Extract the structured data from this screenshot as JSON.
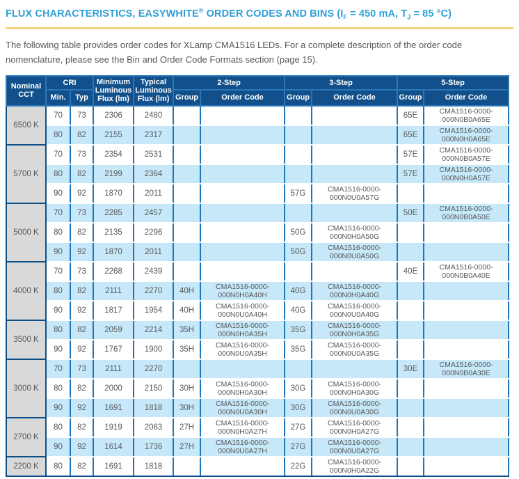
{
  "header": {
    "title_part1": "FLUX CHARACTERISTICS, EASYWHITE",
    "title_reg": "®",
    "title_part2": " ORDER CODES AND BINS (I",
    "title_sub_f": "F",
    "title_part3": " = 450 mA, T",
    "title_sub_j": "J",
    "title_part4": " = 85 °C)"
  },
  "intro_text": "The following table provides order codes for XLamp CMA1516 LEDs. For a complete description of the order code nomenclature, please see the Bin and Order Code Formats section (page 15).",
  "colors": {
    "title_blue": "#2e9fd6",
    "rule_gold": "#f3d37c",
    "header_blue": "#11508b",
    "cell_border_blue": "#1d74ba",
    "dark_border_blue": "#0d4f88",
    "row_alt_blue": "#c6e8f8",
    "cct_gray": "#d9d9d9",
    "text_gray": "#58595b"
  },
  "table": {
    "headers": {
      "nominal_cct": "Nominal CCT",
      "cri": "CRI",
      "cri_min": "Min.",
      "cri_typ": "Typ",
      "min_flux": "Minimum Luminous Flux (lm)",
      "typ_flux": "Typical Luminous Flux (lm)",
      "step2": "2-Step",
      "step3": "3-Step",
      "step5": "5-Step",
      "group": "Group",
      "order_code": "Order Code"
    },
    "groups": [
      {
        "cct": "6500 K",
        "rows": [
          {
            "cri_min": 70,
            "cri_typ": 73,
            "min_flux": 2306,
            "typ_flux": 2480,
            "step2_group": "",
            "step2_code": "",
            "step3_group": "",
            "step3_code": "",
            "step5_group": "65E",
            "step5_code": "CMA1516-0000-000N0B0A65E"
          },
          {
            "cri_min": 80,
            "cri_typ": 82,
            "min_flux": 2155,
            "typ_flux": 2317,
            "step2_group": "",
            "step2_code": "",
            "step3_group": "",
            "step3_code": "",
            "step5_group": "65E",
            "step5_code": "CMA1516-0000-000N0H0A65E"
          }
        ]
      },
      {
        "cct": "5700 K",
        "rows": [
          {
            "cri_min": 70,
            "cri_typ": 73,
            "min_flux": 2354,
            "typ_flux": 2531,
            "step2_group": "",
            "step2_code": "",
            "step3_group": "",
            "step3_code": "",
            "step5_group": "57E",
            "step5_code": "CMA1516-0000-000N0B0A57E"
          },
          {
            "cri_min": 80,
            "cri_typ": 82,
            "min_flux": 2199,
            "typ_flux": 2364,
            "step2_group": "",
            "step2_code": "",
            "step3_group": "",
            "step3_code": "",
            "step5_group": "57E",
            "step5_code": "CMA1516-0000-000N0H0A57E"
          },
          {
            "cri_min": 90,
            "cri_typ": 92,
            "min_flux": 1870,
            "typ_flux": 2011,
            "step2_group": "",
            "step2_code": "",
            "step3_group": "57G",
            "step3_code": "CMA1516-0000-000N0U0A57G",
            "step5_group": "",
            "step5_code": ""
          }
        ]
      },
      {
        "cct": "5000 K",
        "rows": [
          {
            "cri_min": 70,
            "cri_typ": 73,
            "min_flux": 2285,
            "typ_flux": 2457,
            "step2_group": "",
            "step2_code": "",
            "step3_group": "",
            "step3_code": "",
            "step5_group": "50E",
            "step5_code": "CMA1516-0000-000N0B0A50E"
          },
          {
            "cri_min": 80,
            "cri_typ": 82,
            "min_flux": 2135,
            "typ_flux": 2296,
            "step2_group": "",
            "step2_code": "",
            "step3_group": "50G",
            "step3_code": "CMA1516-0000-000N0H0A50G",
            "step5_group": "",
            "step5_code": ""
          },
          {
            "cri_min": 90,
            "cri_typ": 92,
            "min_flux": 1870,
            "typ_flux": 2011,
            "step2_group": "",
            "step2_code": "",
            "step3_group": "50G",
            "step3_code": "CMA1516-0000-000N0U0A50G",
            "step5_group": "",
            "step5_code": ""
          }
        ]
      },
      {
        "cct": "4000 K",
        "rows": [
          {
            "cri_min": 70,
            "cri_typ": 73,
            "min_flux": 2268,
            "typ_flux": 2439,
            "step2_group": "",
            "step2_code": "",
            "step3_group": "",
            "step3_code": "",
            "step5_group": "40E",
            "step5_code": "CMA1516-0000-000N0B0A40E"
          },
          {
            "cri_min": 80,
            "cri_typ": 82,
            "min_flux": 2111,
            "typ_flux": 2270,
            "step2_group": "40H",
            "step2_code": "CMA1516-0000-000N0H0A40H",
            "step3_group": "40G",
            "step3_code": "CMA1516-0000-000N0H0A40G",
            "step5_group": "",
            "step5_code": ""
          },
          {
            "cri_min": 90,
            "cri_typ": 92,
            "min_flux": 1817,
            "typ_flux": 1954,
            "step2_group": "40H",
            "step2_code": "CMA1516-0000-000N0U0A40H",
            "step3_group": "40G",
            "step3_code": "CMA1516-0000-000N0U0A40G",
            "step5_group": "",
            "step5_code": ""
          }
        ]
      },
      {
        "cct": "3500 K",
        "rows": [
          {
            "cri_min": 80,
            "cri_typ": 82,
            "min_flux": 2059,
            "typ_flux": 2214,
            "step2_group": "35H",
            "step2_code": "CMA1516-0000-000N0H0A35H",
            "step3_group": "35G",
            "step3_code": "CMA1516-0000-000N0H0A35G",
            "step5_group": "",
            "step5_code": ""
          },
          {
            "cri_min": 90,
            "cri_typ": 92,
            "min_flux": 1767,
            "typ_flux": 1900,
            "step2_group": "35H",
            "step2_code": "CMA1516-0000-000N0U0A35H",
            "step3_group": "35G",
            "step3_code": "CMA1516-0000-000N0U0A35G",
            "step5_group": "",
            "step5_code": ""
          }
        ]
      },
      {
        "cct": "3000 K",
        "rows": [
          {
            "cri_min": 70,
            "cri_typ": 73,
            "min_flux": 2111,
            "typ_flux": 2270,
            "step2_group": "",
            "step2_code": "",
            "step3_group": "",
            "step3_code": "",
            "step5_group": "30E",
            "step5_code": "CMA1516-0000-000N0B0A30E"
          },
          {
            "cri_min": 80,
            "cri_typ": 82,
            "min_flux": 2000,
            "typ_flux": 2150,
            "step2_group": "30H",
            "step2_code": "CMA1516-0000-000N0H0A30H",
            "step3_group": "30G",
            "step3_code": "CMA1516-0000-000N0H0A30G",
            "step5_group": "",
            "step5_code": ""
          },
          {
            "cri_min": 90,
            "cri_typ": 92,
            "min_flux": 1691,
            "typ_flux": 1818,
            "step2_group": "30H",
            "step2_code": "CMA1516-0000-000N0U0A30H",
            "step3_group": "30G",
            "step3_code": "CMA1516-0000-000N0U0A30G",
            "step5_group": "",
            "step5_code": ""
          }
        ]
      },
      {
        "cct": "2700 K",
        "rows": [
          {
            "cri_min": 80,
            "cri_typ": 82,
            "min_flux": 1919,
            "typ_flux": 2063,
            "step2_group": "27H",
            "step2_code": "CMA1516-0000-000N0H0A27H",
            "step3_group": "27G",
            "step3_code": "CMA1516-0000-000N0H0A27G",
            "step5_group": "",
            "step5_code": ""
          },
          {
            "cri_min": 90,
            "cri_typ": 92,
            "min_flux": 1614,
            "typ_flux": 1736,
            "step2_group": "27H",
            "step2_code": "CMA1516-0000-000N0U0A27H",
            "step3_group": "27G",
            "step3_code": "CMA1516-0000-000N0U0A27G",
            "step5_group": "",
            "step5_code": ""
          }
        ]
      },
      {
        "cct": "2200 K",
        "rows": [
          {
            "cri_min": 80,
            "cri_typ": 82,
            "min_flux": 1691,
            "typ_flux": 1818,
            "step2_group": "",
            "step2_code": "",
            "step3_group": "22G",
            "step3_code": "CMA1516-0000-000N0H0A22G",
            "step5_group": "",
            "step5_code": ""
          }
        ]
      }
    ]
  }
}
